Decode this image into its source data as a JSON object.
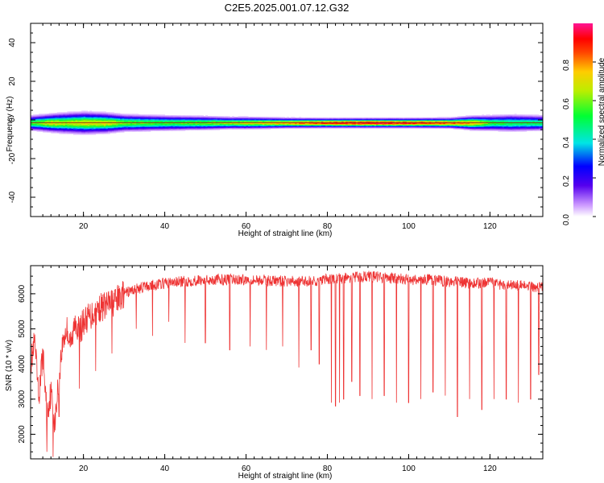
{
  "title": "C2E5.2025.001.07.12.G32",
  "chart_data": [
    {
      "type": "heatmap",
      "xlabel": "Height of straight line (km)",
      "ylabel": "Frequency (Hz)",
      "xlim": [
        7,
        133
      ],
      "ylim": [
        -50,
        50
      ],
      "x_ticks": [
        20,
        40,
        60,
        80,
        100,
        120
      ],
      "y_ticks": [
        -40,
        -20,
        0,
        20,
        40
      ],
      "colorbar": {
        "label": "Normalized spectral amplitude",
        "range": [
          0,
          1
        ],
        "ticks": [
          0.0,
          0.2,
          0.4,
          0.6,
          0.8
        ],
        "colormap": "rainbow (violet to magenta)"
      },
      "band": {
        "center_hz": -1.5,
        "half_width_hz": [
          [
            7,
            4.5
          ],
          [
            10,
            5.0
          ],
          [
            15,
            6.0
          ],
          [
            20,
            6.5
          ],
          [
            25,
            6.0
          ],
          [
            30,
            5.0
          ],
          [
            40,
            4.5
          ],
          [
            50,
            4.0
          ],
          [
            56,
            3.5
          ],
          [
            60,
            3.5
          ],
          [
            70,
            3.0
          ],
          [
            80,
            2.8
          ],
          [
            90,
            2.8
          ],
          [
            100,
            2.8
          ],
          [
            110,
            3.0
          ],
          [
            115,
            4.0
          ],
          [
            120,
            4.5
          ],
          [
            125,
            5.0
          ],
          [
            133,
            4.5
          ]
        ],
        "peak_amplitude": [
          [
            7,
            0.55
          ],
          [
            12,
            0.7
          ],
          [
            15,
            0.65
          ],
          [
            20,
            0.7
          ],
          [
            25,
            0.7
          ],
          [
            30,
            0.6
          ],
          [
            40,
            0.55
          ],
          [
            50,
            0.6
          ],
          [
            60,
            0.68
          ],
          [
            70,
            0.78
          ],
          [
            80,
            0.9
          ],
          [
            90,
            0.95
          ],
          [
            100,
            0.92
          ],
          [
            110,
            0.85
          ],
          [
            116,
            0.75
          ],
          [
            120,
            0.55
          ],
          [
            125,
            0.5
          ],
          [
            133,
            0.5
          ]
        ]
      },
      "grid": false
    },
    {
      "type": "line",
      "xlabel": "Height of straight line (km)",
      "ylabel": "SNR (10 * v/v)",
      "xlim": [
        7,
        133
      ],
      "ylim": [
        1300,
        6800
      ],
      "x_ticks": [
        20,
        40,
        60,
        80,
        100,
        120
      ],
      "y_ticks": [
        2000,
        3000,
        4000,
        5000,
        6000
      ],
      "color": "#ee3333",
      "series": [
        {
          "x": [
            7,
            8,
            9,
            10,
            11,
            12,
            13,
            14,
            15,
            16,
            17,
            18,
            19,
            20,
            22,
            24,
            26,
            28,
            30,
            32,
            35,
            40,
            45,
            50,
            55,
            60,
            65,
            70,
            75,
            80,
            85,
            90,
            95,
            100,
            105,
            110,
            115,
            120,
            125,
            130,
            133
          ],
          "y": [
            4000,
            4600,
            3000,
            4300,
            2600,
            3200,
            2300,
            3700,
            4700,
            5000,
            4500,
            5300,
            4900,
            5200,
            5400,
            5600,
            5700,
            5800,
            6000,
            6100,
            6200,
            6300,
            6350,
            6400,
            6400,
            6400,
            6380,
            6350,
            6350,
            6400,
            6450,
            6500,
            6450,
            6400,
            6400,
            6350,
            6300,
            6300,
            6250,
            6200,
            6200
          ]
        }
      ],
      "dropouts": [
        {
          "x": 12.5,
          "y": 1350
        },
        {
          "x": 11.0,
          "y": 1500
        },
        {
          "x": 14.0,
          "y": 2500
        },
        {
          "x": 19.0,
          "y": 3300
        },
        {
          "x": 23.0,
          "y": 3800
        },
        {
          "x": 27.0,
          "y": 4300
        },
        {
          "x": 33.0,
          "y": 5000
        },
        {
          "x": 37.0,
          "y": 4800
        },
        {
          "x": 41.0,
          "y": 5200
        },
        {
          "x": 45.0,
          "y": 4600
        },
        {
          "x": 50.0,
          "y": 4600
        },
        {
          "x": 56.0,
          "y": 4400
        },
        {
          "x": 61.0,
          "y": 4500
        },
        {
          "x": 65.0,
          "y": 4400
        },
        {
          "x": 69.0,
          "y": 4500
        },
        {
          "x": 73.0,
          "y": 3900
        },
        {
          "x": 76.0,
          "y": 4400
        },
        {
          "x": 78.0,
          "y": 4000
        },
        {
          "x": 81.0,
          "y": 2900
        },
        {
          "x": 82.0,
          "y": 2800
        },
        {
          "x": 83.0,
          "y": 2900
        },
        {
          "x": 84.0,
          "y": 3000
        },
        {
          "x": 86.0,
          "y": 3500
        },
        {
          "x": 88.0,
          "y": 3100
        },
        {
          "x": 91.0,
          "y": 3000
        },
        {
          "x": 94.0,
          "y": 3100
        },
        {
          "x": 97.0,
          "y": 2900
        },
        {
          "x": 100.0,
          "y": 2900
        },
        {
          "x": 103.0,
          "y": 3000
        },
        {
          "x": 106.0,
          "y": 3200
        },
        {
          "x": 109.0,
          "y": 3100
        },
        {
          "x": 112.0,
          "y": 2500
        },
        {
          "x": 115.0,
          "y": 3000
        },
        {
          "x": 118.0,
          "y": 2700
        },
        {
          "x": 121.0,
          "y": 3000
        },
        {
          "x": 124.0,
          "y": 3000
        },
        {
          "x": 127.0,
          "y": 2900
        },
        {
          "x": 130.0,
          "y": 3000
        },
        {
          "x": 132.0,
          "y": 3700
        }
      ],
      "grid": false
    }
  ]
}
